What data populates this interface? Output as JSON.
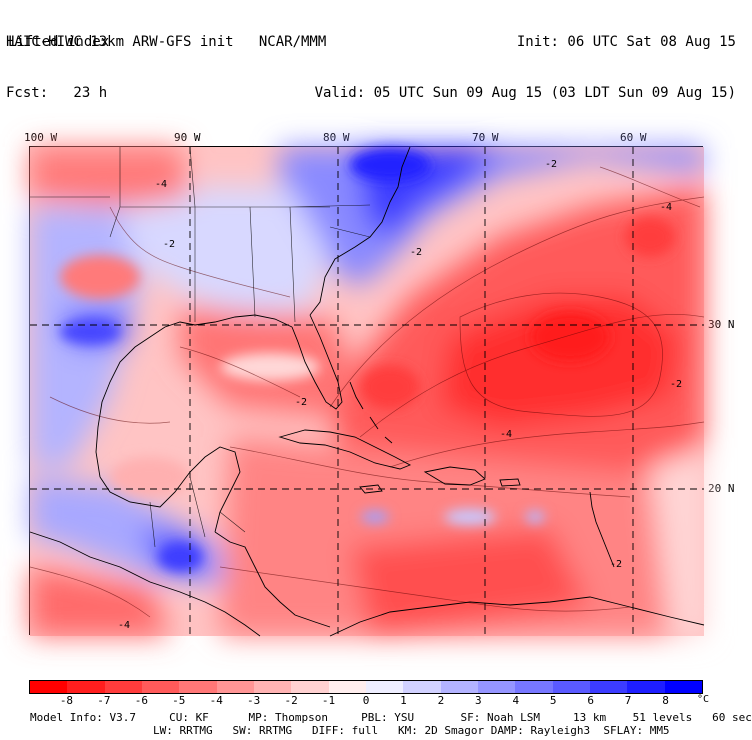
{
  "header": {
    "line1_left": "HAIC-HIWC 13km ARW-GFS init   NCAR/MMM",
    "line2_left": "Fcst:   23 h",
    "line1_right": "Init: 06 UTC Sat 08 Aug 15",
    "line2_right": "Valid: 05 UTC Sun 09 Aug 15 (03 LDT Sun 09 Aug 15)",
    "field_name": "Lifted index"
  },
  "map": {
    "lon_labels": [
      "100 W",
      "90 W",
      "80 W",
      "70 W",
      "60 W"
    ],
    "lat_labels": [
      "30 N",
      "20 N"
    ],
    "contour_labels": [
      "-4",
      "-2",
      "-2",
      "-2",
      "-4",
      "-2",
      "-4",
      "-2",
      "-4",
      "-2"
    ],
    "colors": {
      "strong_negative": "#ff2b2b",
      "negative": "#ff7a7a",
      "weak_negative": "#ffc2c2",
      "neutral": "#ffffff",
      "weak_positive": "#c6c6ff",
      "positive": "#6a6aff",
      "strong_positive": "#1e1eff"
    }
  },
  "colorbar": {
    "labels": [
      "-8",
      "-7",
      "-6",
      "-5",
      "-4",
      "-3",
      "-2",
      "-1",
      "0",
      "1",
      "2",
      "3",
      "4",
      "5",
      "6",
      "7",
      "8"
    ],
    "unit": "°C",
    "colors": [
      "#ff0000",
      "#ff1e1e",
      "#ff3c3c",
      "#ff5a5a",
      "#ff7777",
      "#ff9595",
      "#ffb3b3",
      "#ffd1d1",
      "#ffeeee",
      "#eeeeff",
      "#d1d1ff",
      "#b3b3ff",
      "#9595ff",
      "#7777ff",
      "#5a5aff",
      "#3c3cff",
      "#1e1eff",
      "#0000ff"
    ]
  },
  "footer": {
    "line1": "Model Info: V3.7     CU: KF      MP: Thompson     PBL: YSU       SF: Noah LSM     13 km    51 levels   60 sec",
    "line2": "LW: RRTMG   SW: RRTMG   DIFF: full   KM: 2D Smagor DAMP: Rayleigh3  SFLAY: MM5"
  }
}
